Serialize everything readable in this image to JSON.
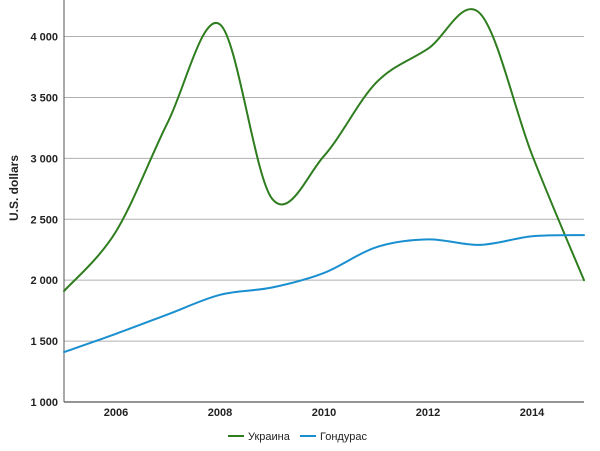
{
  "chart_data": {
    "type": "line",
    "title": "",
    "xlabel": "",
    "ylabel": "U.S. dollars",
    "xlim": [
      2005,
      2015
    ],
    "ylim": [
      1000,
      4300
    ],
    "x_ticks": [
      2006,
      2008,
      2010,
      2012,
      2014
    ],
    "x_tick_labels": [
      "2006",
      "2008",
      "2010",
      "2012",
      "2014"
    ],
    "y_ticks": [
      1000,
      1500,
      2000,
      2500,
      3000,
      3500,
      4000
    ],
    "y_tick_labels": [
      "1 000",
      "1 500",
      "2 000",
      "2 500",
      "3 000",
      "3 500",
      "4 000"
    ],
    "grid": "horizontal",
    "legend": "bottom-center",
    "series": [
      {
        "name": "Украина",
        "color": "#2e7d1e",
        "x": [
          2005,
          2006,
          2007,
          2008,
          2009,
          2010,
          2011,
          2012,
          2013,
          2014,
          2015
        ],
        "values": [
          1910,
          2400,
          3300,
          4100,
          2670,
          3020,
          3620,
          3900,
          4190,
          3030,
          2000
        ]
      },
      {
        "name": "Гондурас",
        "color": "#1a8fd0",
        "x": [
          2005,
          2006,
          2007,
          2008,
          2009,
          2010,
          2011,
          2012,
          2013,
          2014,
          2015
        ],
        "values": [
          1410,
          1560,
          1720,
          1880,
          1940,
          2060,
          2270,
          2335,
          2290,
          2360,
          2370
        ]
      }
    ]
  }
}
